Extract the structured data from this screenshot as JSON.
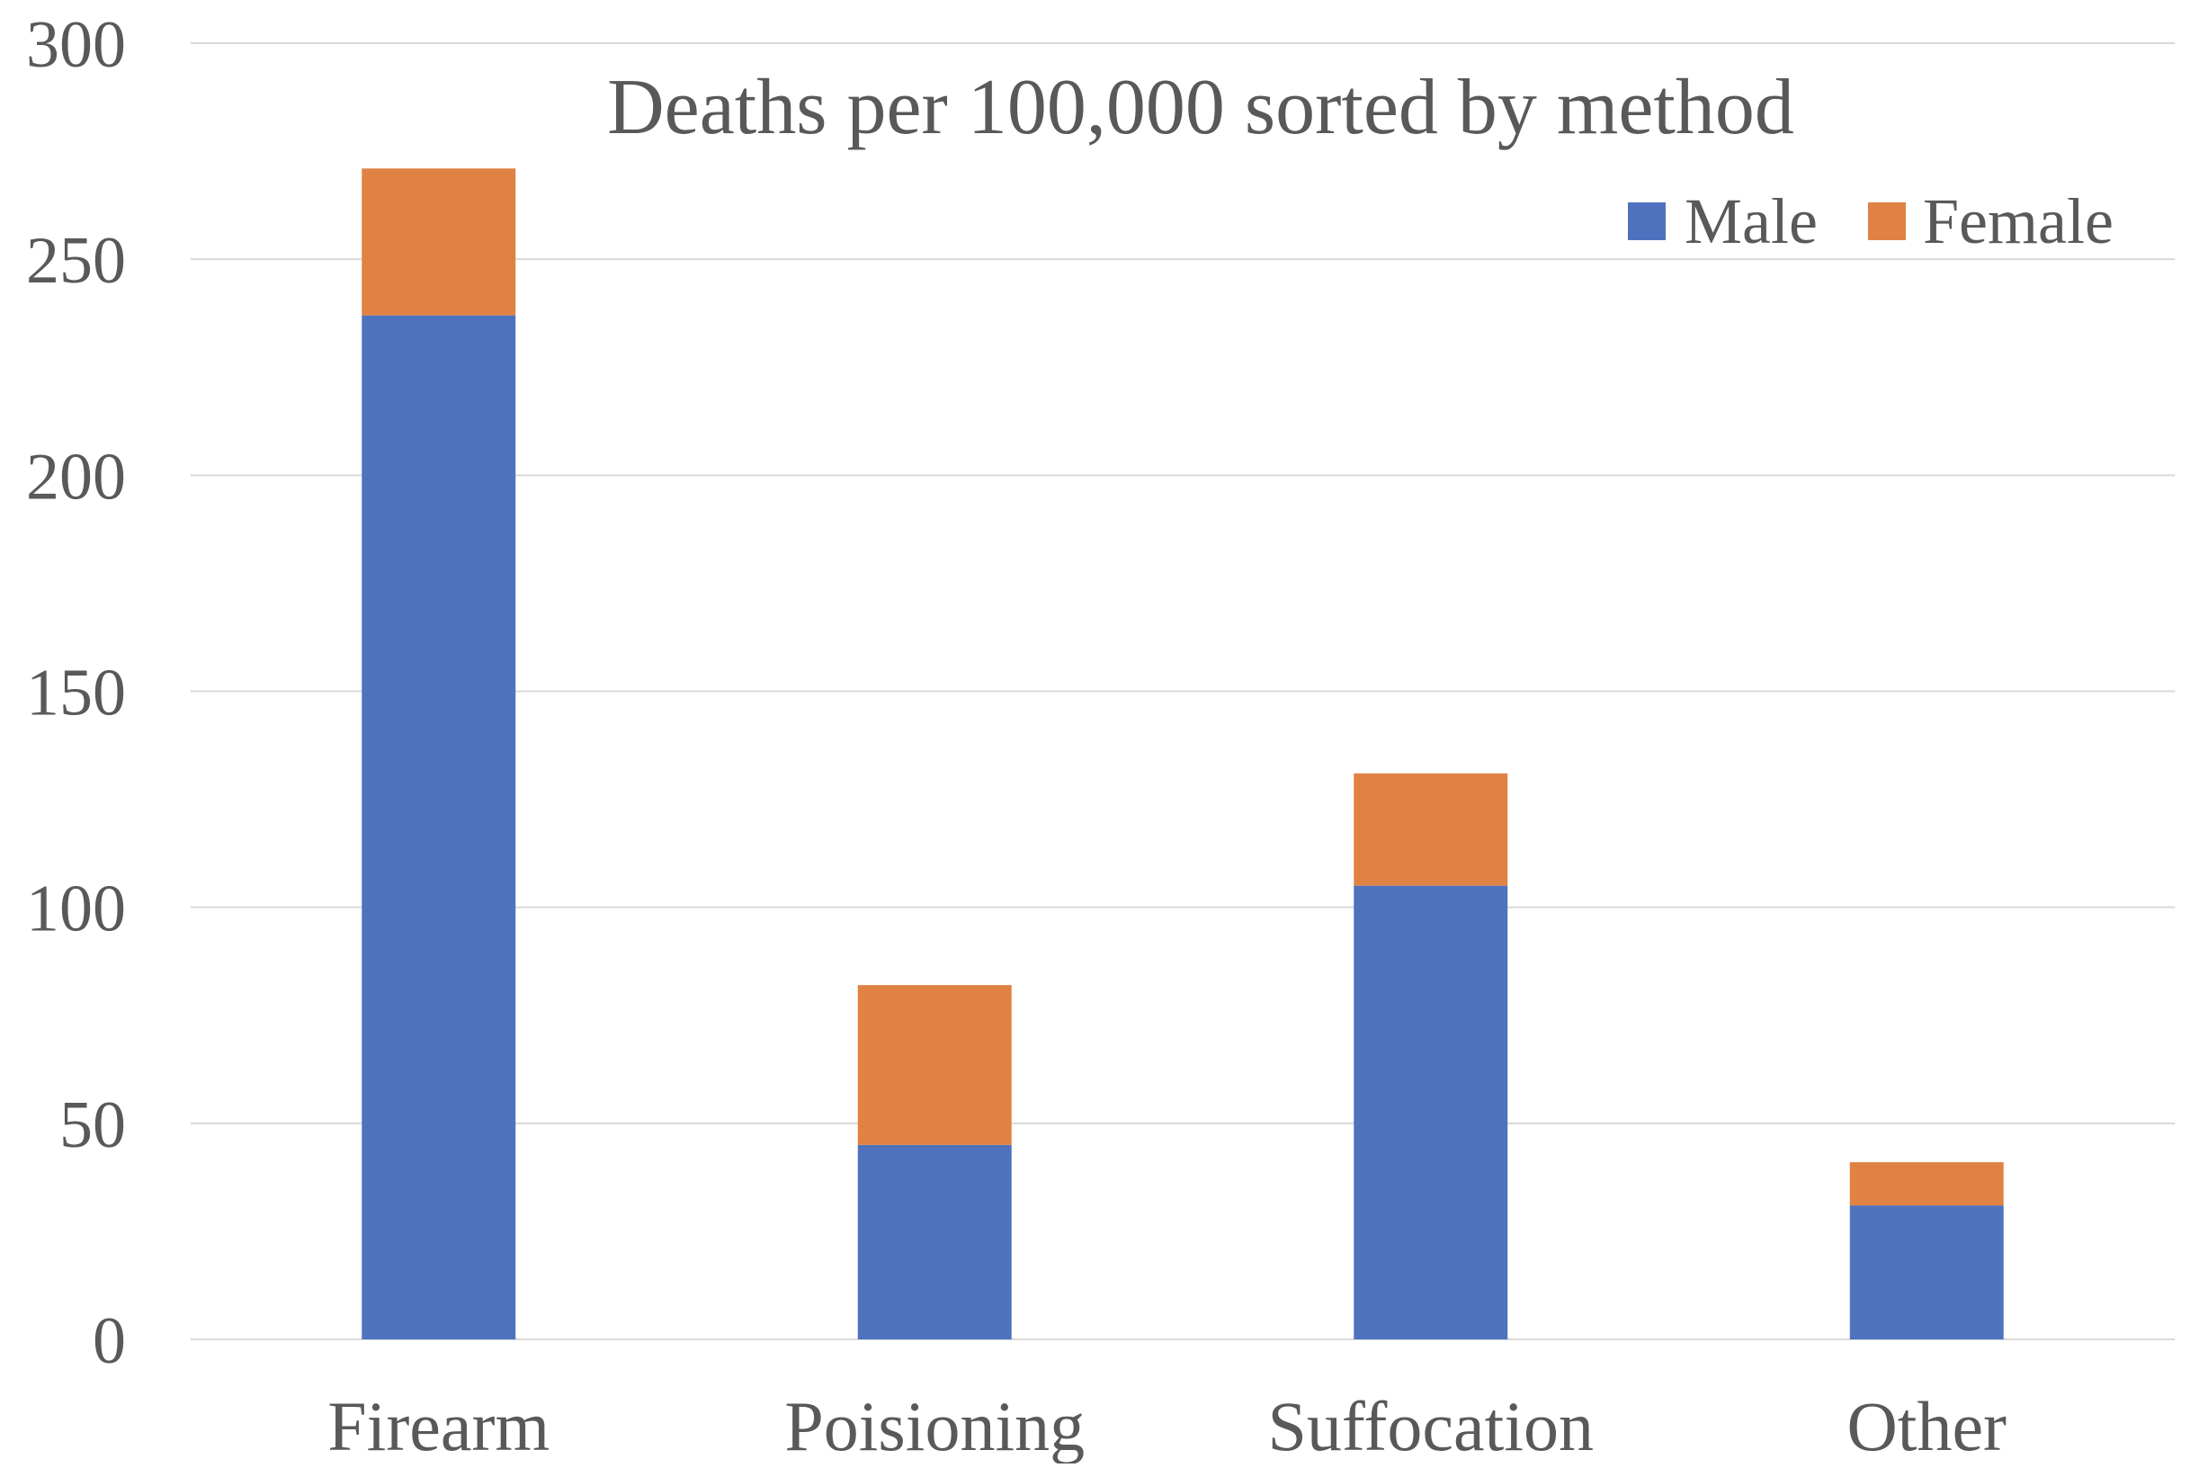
{
  "chart_data": {
    "type": "bar",
    "stacked": true,
    "title": "Deaths per 100,000 sorted by method",
    "xlabel": "",
    "ylabel": "",
    "categories": [
      "Firearm",
      "Poisioning",
      "Suffocation",
      "Other"
    ],
    "series": [
      {
        "name": "Male",
        "color": "#4e73be",
        "values": [
          237,
          45,
          105,
          31
        ]
      },
      {
        "name": "Female",
        "color": "#e08244",
        "values": [
          34,
          37,
          26,
          10
        ]
      }
    ],
    "ylim": [
      0,
      300
    ],
    "yticks": [
      0,
      50,
      100,
      150,
      200,
      250,
      300
    ],
    "grid": true,
    "legend_position": "top-right",
    "gridline_color": "#d9d9d9",
    "text_color": "#595959"
  }
}
